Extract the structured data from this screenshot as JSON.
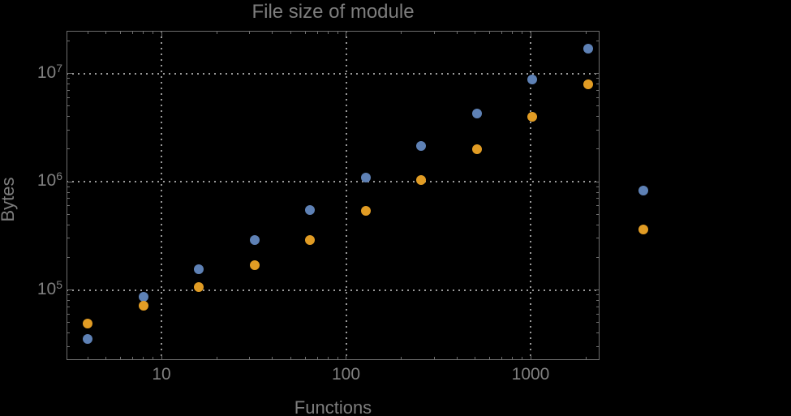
{
  "background_color": "#000000",
  "text_color": "#808080",
  "frame_color": "#6E6E6E",
  "grid_color": "#9A9A9A",
  "chart_data": {
    "type": "scatter",
    "title": "File size of module",
    "xlabel": "Functions",
    "ylabel": "Bytes",
    "x_scale": "log",
    "y_scale": "log",
    "xlim": [
      3.06,
      2365
    ],
    "ylim": [
      22500,
      24800000
    ],
    "grid": "dotted lines at decades, gray",
    "legend": "none",
    "x_ticks": [
      {
        "label": "10",
        "value": 10
      },
      {
        "label": "100",
        "value": 100
      },
      {
        "label": "1000",
        "value": 1000
      }
    ],
    "y_ticks": [
      {
        "base": "10",
        "exp": "5",
        "value": 100000
      },
      {
        "base": "10",
        "exp": "6",
        "value": 1000000
      },
      {
        "base": "10",
        "exp": "7",
        "value": 10000000
      }
    ],
    "series": [
      {
        "name": "blue-series",
        "color": "#5E81B5",
        "points": [
          [
            4,
            35000
          ],
          [
            8,
            87000
          ],
          [
            16,
            154000
          ],
          [
            32,
            290000
          ],
          [
            64,
            550000
          ],
          [
            128,
            1100000
          ],
          [
            256,
            2150000
          ],
          [
            512,
            4300000
          ],
          [
            1024,
            8800000
          ],
          [
            2048,
            17000000
          ],
          [
            4096,
            830000
          ]
        ]
      },
      {
        "name": "orange-series",
        "color": "#E19C24",
        "points": [
          [
            4,
            49000
          ],
          [
            8,
            71000
          ],
          [
            16,
            106000
          ],
          [
            32,
            170000
          ],
          [
            64,
            290000
          ],
          [
            128,
            540000
          ],
          [
            256,
            1030000
          ],
          [
            512,
            2000000
          ],
          [
            1024,
            4000000
          ],
          [
            2048,
            7900000
          ],
          [
            4096,
            360000
          ]
        ]
      }
    ]
  }
}
